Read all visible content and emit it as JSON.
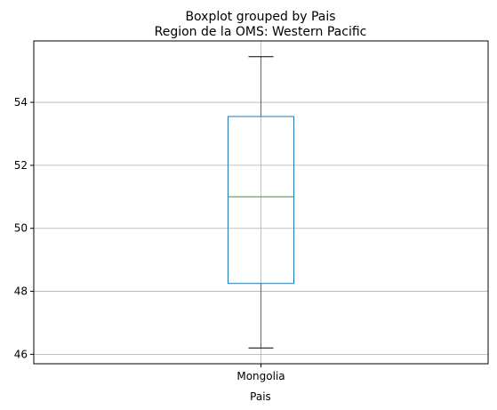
{
  "chart_data": {
    "type": "box",
    "suptitle": "Boxplot grouped by Pais",
    "title": "Region de la OMS: Western Pacific",
    "xlabel": "Pais",
    "ylabel": "",
    "categories": [
      "Mongolia"
    ],
    "boxes": [
      {
        "category": "Mongolia",
        "whisker_low": 46.2,
        "q1": 48.25,
        "median": 51.0,
        "q3": 53.55,
        "whisker_high": 55.45
      }
    ],
    "ylim": [
      45.7,
      55.95
    ],
    "yticks": [
      46,
      48,
      50,
      52,
      54
    ],
    "grid": true,
    "colors": {
      "box": "#1f77b4",
      "median": "#2ca02c",
      "whisker": "#1f77b4",
      "grid": "#b0b0b0"
    }
  }
}
